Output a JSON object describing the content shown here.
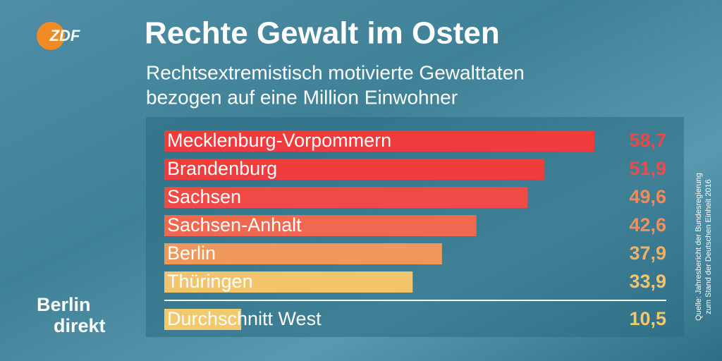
{
  "chart_data": {
    "type": "bar",
    "orientation": "horizontal",
    "logo": "ZDF",
    "title": "Rechte Gewalt im Osten",
    "subtitle": [
      "Rechtsextremistisch motivierte Gewalttaten",
      "bezogen auf eine Million Einwohner"
    ],
    "categories": [
      "Mecklenburg-Vorpommern",
      "Brandenburg",
      "Sachsen",
      "Sachsen-Anhalt",
      "Berlin",
      "Thüringen"
    ],
    "values": [
      58.7,
      51.9,
      49.6,
      42.6,
      37.9,
      33.9
    ],
    "value_labels": [
      "58,7",
      "51,9",
      "49,6",
      "42,6",
      "37,9",
      "33,9"
    ],
    "colors": [
      "#ef3b3b",
      "#ef3c3c",
      "#ef4a45",
      "#f0684f",
      "#f0985c",
      "#f2c46c"
    ],
    "label_colors": [
      "#f04545",
      "#f04a48",
      "#f08a5c",
      "#f0905e",
      "#f2b066",
      "#f2c46c"
    ],
    "reference": {
      "label": "Durchschnitt West",
      "value": 10.5,
      "value_label": "10,5",
      "color": "#f2c96c"
    },
    "brand": [
      "Berlin",
      "direkt"
    ],
    "source": [
      "Quelle: Jahresbericht der Bundesregierung",
      "zum Stand der Deutschen Einheit 2016"
    ]
  }
}
